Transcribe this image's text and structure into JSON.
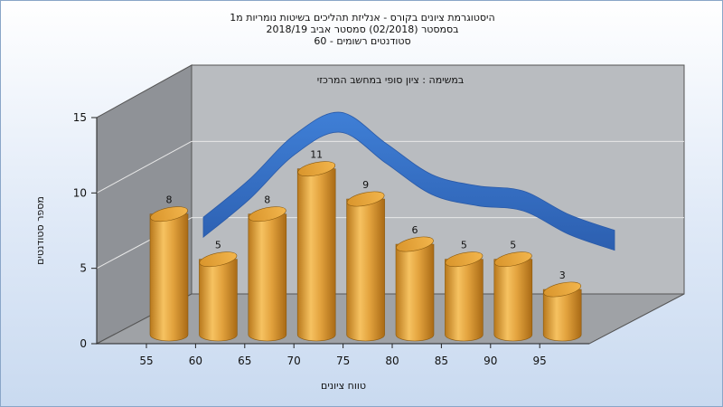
{
  "chart_data": {
    "type": "bar",
    "title_lines": [
      "היסטוגרמת ציונים בקורס - אנליזת תהליכים בשיטות נומריות מ1",
      "בסמסטר  (02/2018)  סמסטר אביב 2018/19",
      "סטודנטים רשומים - 60"
    ],
    "subtitle": "במשימה : ציון סופי במחשב המרכזי",
    "xlabel": "טווח ציונים",
    "ylabel": "מספר סטודנטים",
    "x_ticks": [
      "55",
      "60",
      "65",
      "70",
      "75",
      "80",
      "85",
      "90",
      "95"
    ],
    "y_ticks": [
      "0",
      "5",
      "10",
      "15"
    ],
    "ylim": [
      0,
      15
    ],
    "values": [
      8,
      5,
      8,
      11,
      9,
      6,
      5,
      5,
      3
    ],
    "data_labels": [
      "8",
      "5",
      "8",
      "11",
      "9",
      "6",
      "5",
      "5",
      "3"
    ],
    "curve": [
      5.5,
      8,
      11,
      12.5,
      10.5,
      8.5,
      7.8,
      7.5,
      6,
      5
    ],
    "colors": {
      "bar": "#e0a030",
      "curve": "#3a70c8",
      "wall": "#b9bcc0",
      "side_wall": "#8f9297",
      "floor": "#9fa2a6"
    }
  }
}
